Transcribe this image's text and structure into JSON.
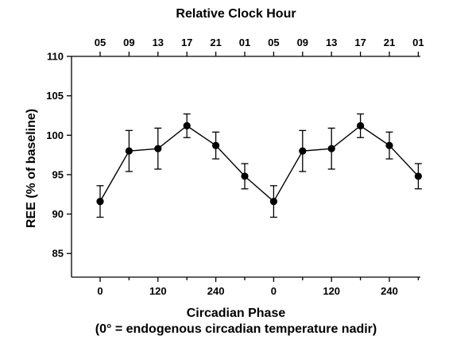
{
  "chart_data": {
    "type": "line",
    "top_axis_label": "Relative Clock Hour",
    "top_ticks": [
      "05",
      "09",
      "13",
      "17",
      "21",
      "01",
      "05",
      "09",
      "13",
      "17",
      "21",
      "01"
    ],
    "xlabel": "Circadian Phase",
    "xlabel_sub": "(0° = endogenous circadian temperature nadir)",
    "x_ticks": [
      {
        "label": "0",
        "index": 0
      },
      {
        "label": "120",
        "index": 2
      },
      {
        "label": "240",
        "index": 4
      },
      {
        "label": "0",
        "index": 6
      },
      {
        "label": "120",
        "index": 8
      },
      {
        "label": "240",
        "index": 10
      }
    ],
    "ylabel": "REE (% of baseline)",
    "ylim": [
      82,
      110
    ],
    "y_ticks": [
      85,
      90,
      95,
      100,
      105,
      110
    ],
    "grid": false,
    "series": [
      {
        "values": [
          91.6,
          98.0,
          98.3,
          101.2,
          98.7,
          94.8,
          91.6,
          98.0,
          98.3,
          101.2,
          98.7,
          94.8
        ],
        "errors": [
          2.0,
          2.6,
          2.6,
          1.5,
          1.7,
          1.6,
          2.0,
          2.6,
          2.6,
          1.5,
          1.7,
          1.6
        ]
      }
    ],
    "style": {
      "line_color": "#000000",
      "marker_color": "#000000"
    }
  }
}
